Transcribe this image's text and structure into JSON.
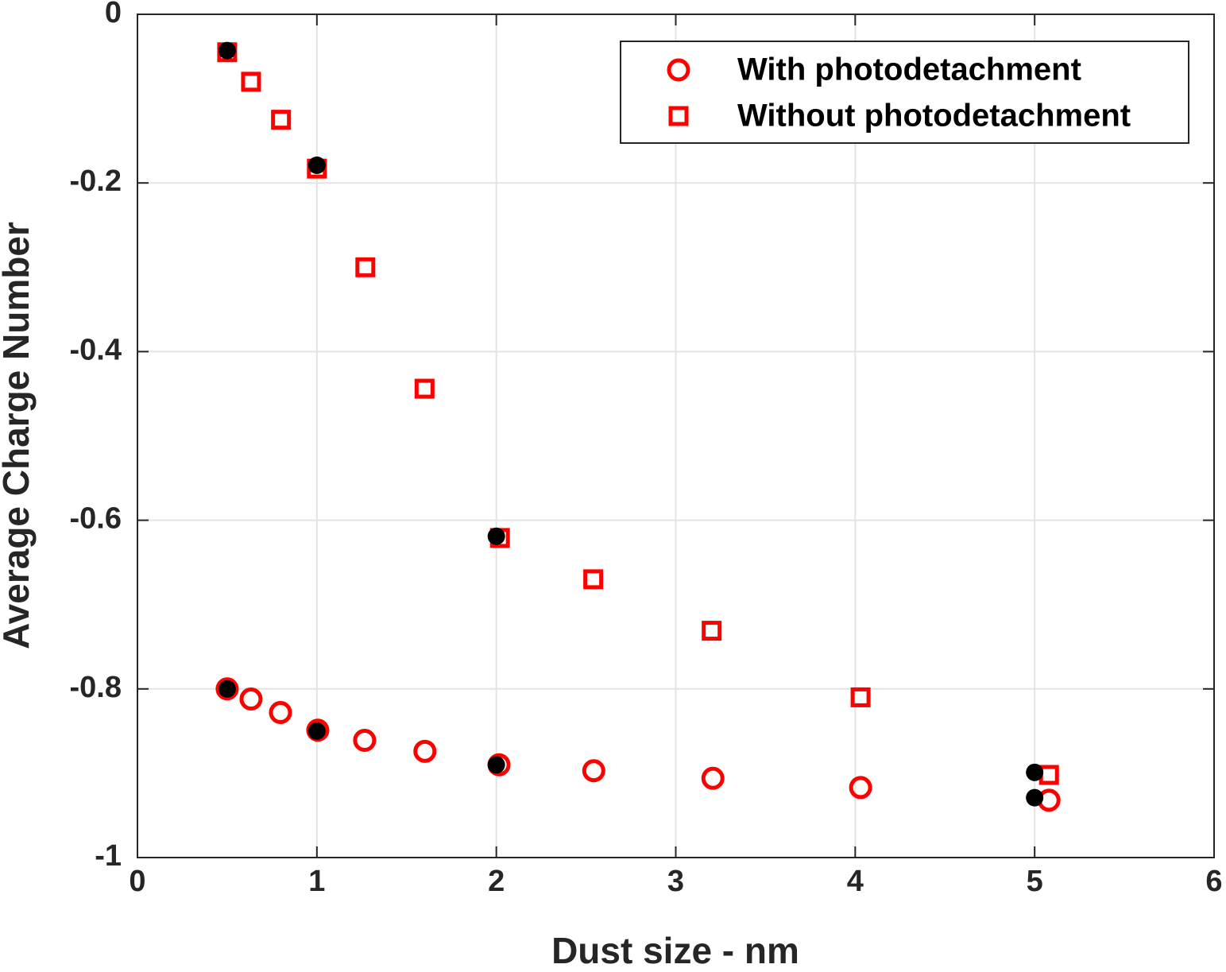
{
  "chart_data": {
    "type": "scatter",
    "xlabel": "Dust size - nm",
    "ylabel": "Average Charge Number",
    "xlim": [
      0,
      6
    ],
    "xticks": [
      0,
      1,
      2,
      3,
      4,
      5,
      6
    ],
    "ylim": [
      -1,
      0
    ],
    "yticks": [
      0,
      -0.2,
      -0.4,
      -0.6,
      -0.8,
      -1
    ],
    "grid": true,
    "legend": "upper right",
    "series": [
      {
        "name": "With photodetachment",
        "color": "#ff0000",
        "marker": "circle",
        "x": [
          0.5,
          0.633,
          0.797,
          1.005,
          1.266,
          1.602,
          2.015,
          2.543,
          3.207,
          4.03,
          5.08
        ],
        "values": [
          -0.8,
          -0.812,
          -0.828,
          -0.849,
          -0.861,
          -0.874,
          -0.89,
          -0.897,
          -0.906,
          -0.917,
          -0.932
        ]
      },
      {
        "name": "Without photodetachment",
        "color": "#ff0000",
        "marker": "square",
        "x": [
          0.5,
          0.633,
          0.8,
          1.0,
          1.27,
          1.6,
          2.02,
          2.54,
          3.2,
          4.03,
          5.08
        ],
        "values": [
          -0.045,
          -0.08,
          -0.125,
          -0.183,
          -0.3,
          -0.444,
          -0.621,
          -0.67,
          -0.731,
          -0.81,
          -0.902
        ]
      },
      {
        "color": "#000000",
        "marker": "dot",
        "x": [
          0.5,
          1.0,
          2.0,
          0.5,
          1.0,
          2.0,
          5.0,
          5.0
        ],
        "values": [
          -0.043,
          -0.179,
          -0.619,
          -0.8,
          -0.85,
          -0.89,
          -0.899,
          -0.929
        ]
      }
    ]
  }
}
